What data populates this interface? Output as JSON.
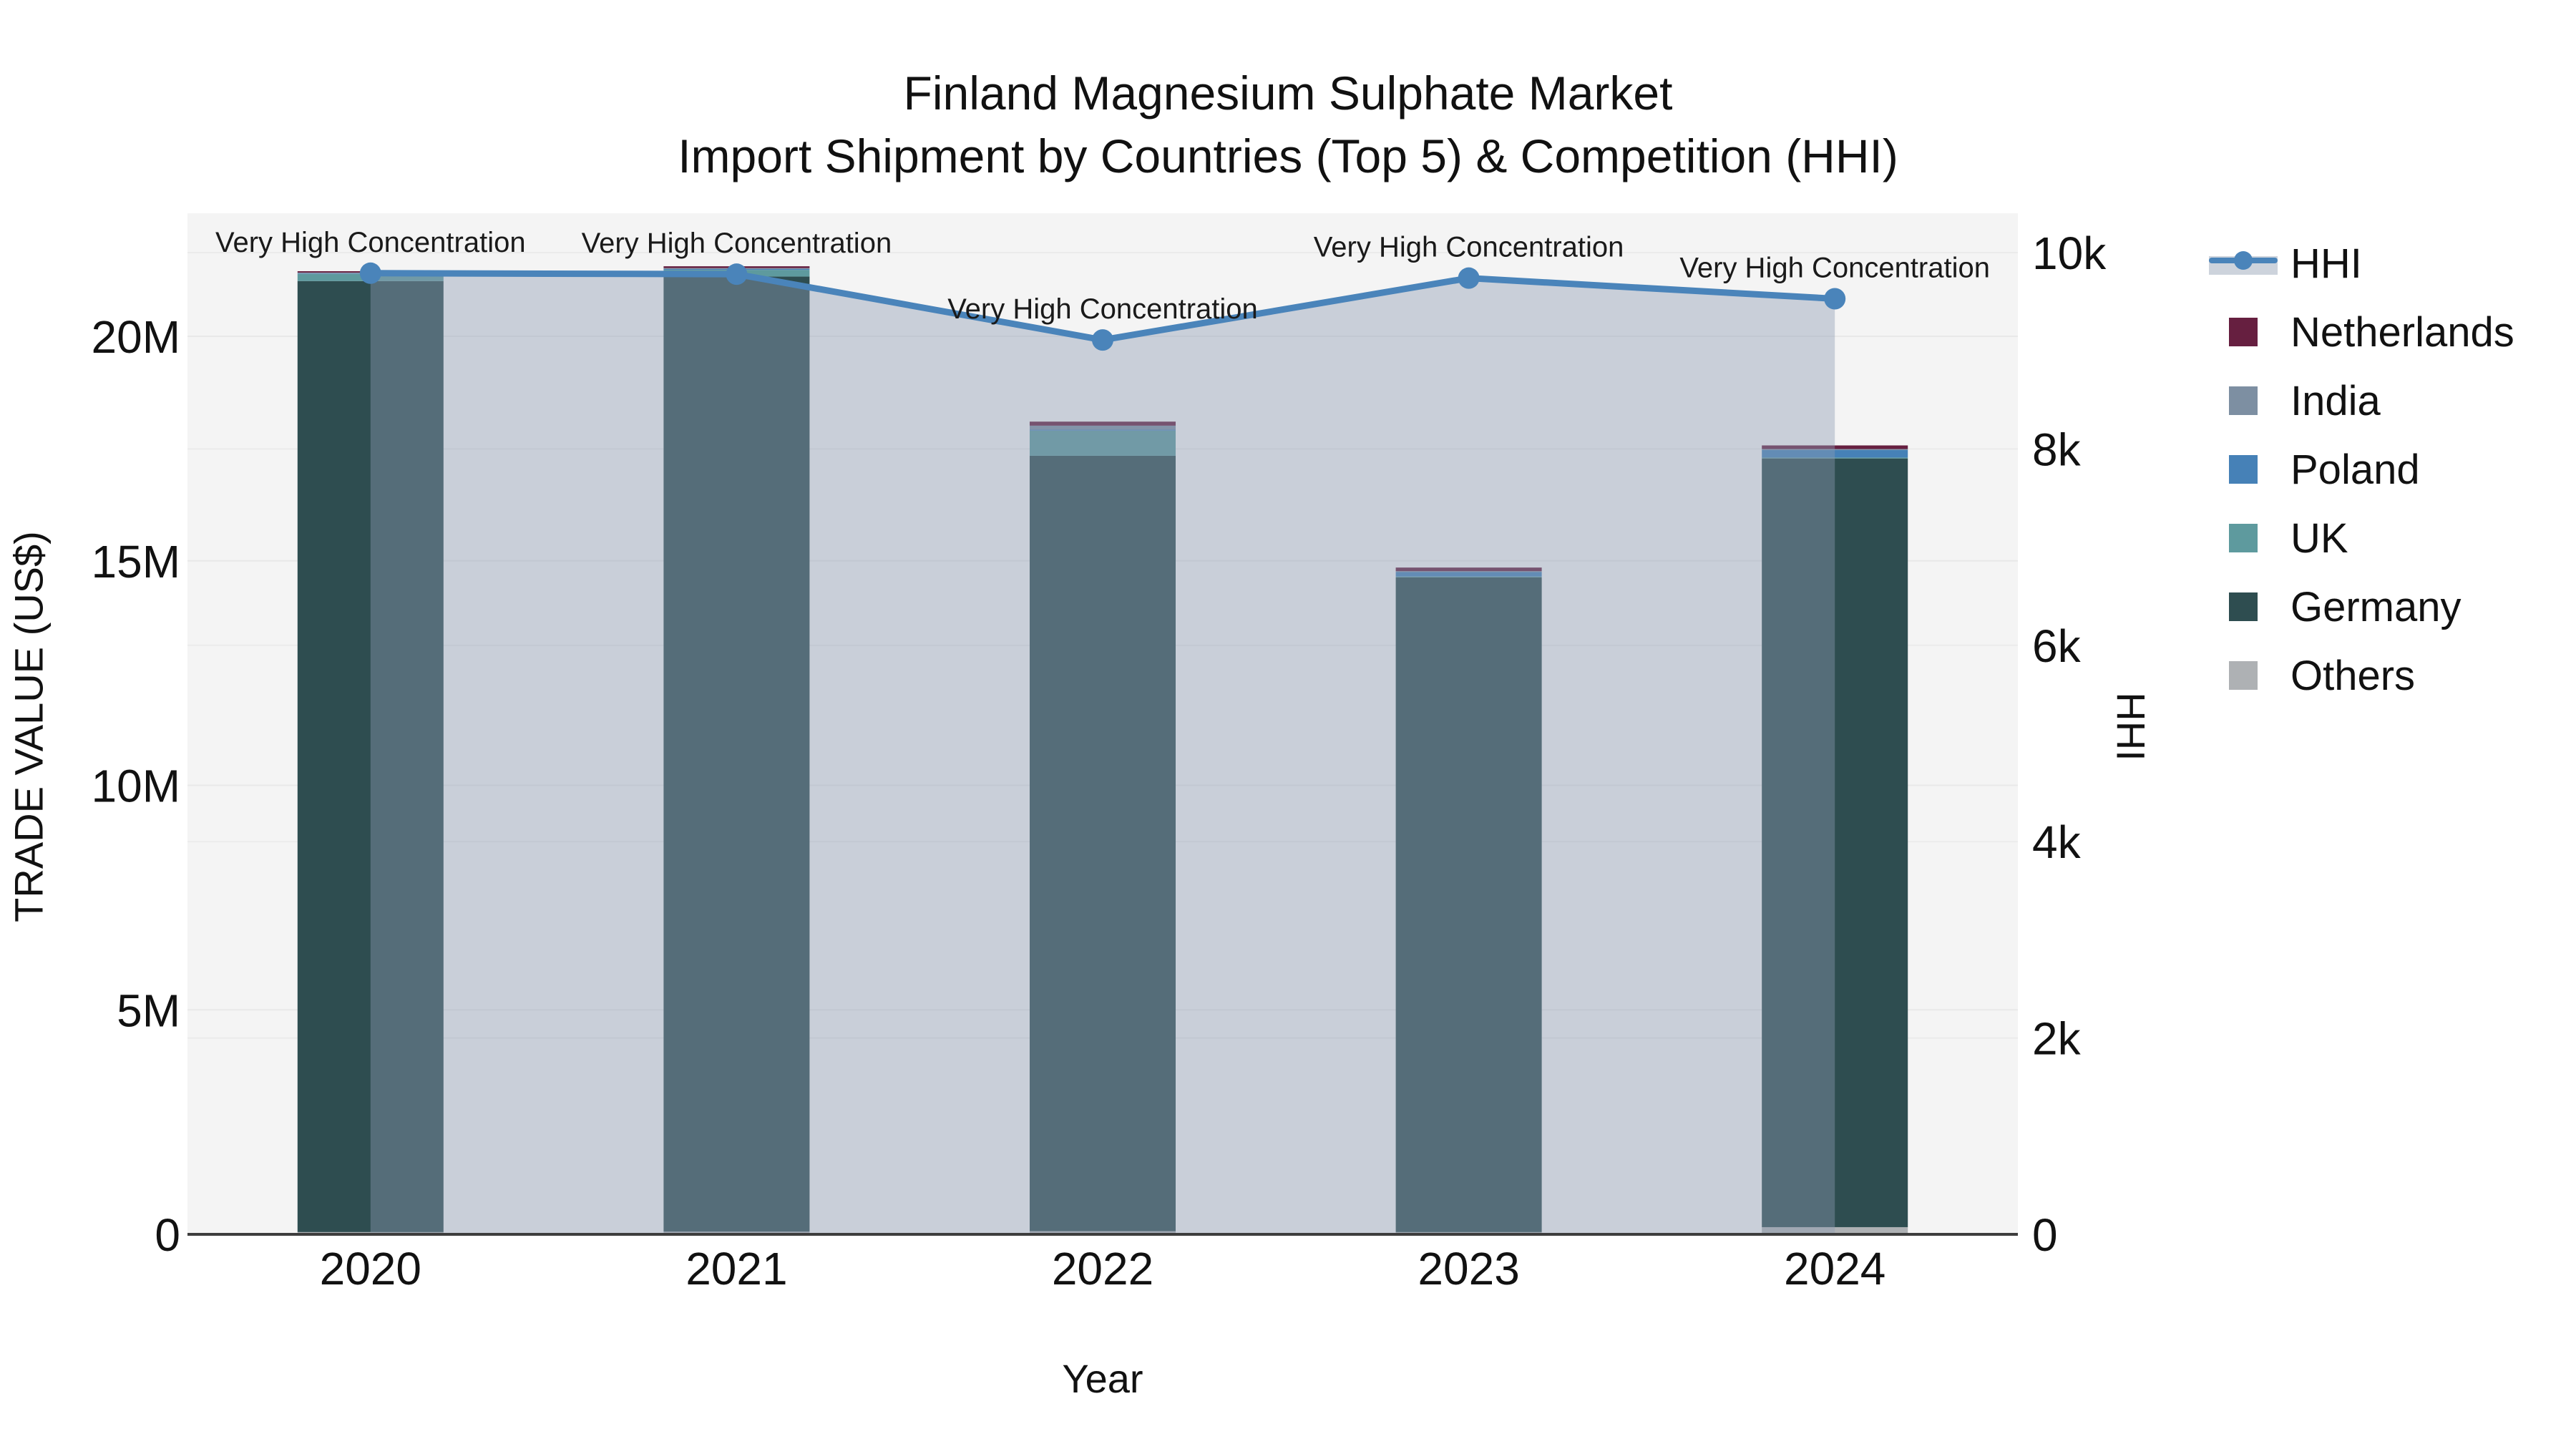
{
  "title": {
    "line1": "Finland Magnesium Sulphate Market",
    "line2": "Import Shipment by Countries (Top 5) & Competition (HHI)"
  },
  "axes": {
    "left": {
      "title": "TRADE VALUE (US$)",
      "ticks": [
        "0",
        "5M",
        "10M",
        "15M",
        "20M"
      ],
      "tick_values_millions": [
        0,
        5,
        10,
        15,
        20
      ]
    },
    "right": {
      "title": "HHI",
      "ticks": [
        "0",
        "2k",
        "4k",
        "6k",
        "8k",
        "10k"
      ],
      "tick_values": [
        0,
        2000,
        4000,
        6000,
        8000,
        10000
      ]
    },
    "x": {
      "title": "Year",
      "categories": [
        "2020",
        "2021",
        "2022",
        "2023",
        "2024"
      ]
    }
  },
  "legend": {
    "items": [
      "HHI",
      "Netherlands",
      "India",
      "Poland",
      "UK",
      "Germany",
      "Others"
    ]
  },
  "chart_data": {
    "type": "bar+line",
    "subtype": "stacked bars (left axis, million US$) with HHI line+area on right axis",
    "categories": [
      "2020",
      "2021",
      "2022",
      "2023",
      "2024"
    ],
    "bar_unit": "million US$",
    "stack_order_bottom_to_top": [
      "Others",
      "Germany",
      "UK",
      "Poland",
      "India",
      "Netherlands"
    ],
    "series": [
      {
        "name": "Netherlands",
        "color": "#661f40",
        "values_millions": [
          0.03,
          0.04,
          0.09,
          0.08,
          0.08
        ]
      },
      {
        "name": "India",
        "color": "#7d8fa2",
        "values_millions": [
          0.02,
          0.02,
          0.09,
          0.02,
          0.02
        ]
      },
      {
        "name": "Poland",
        "color": "#4681b7",
        "values_millions": [
          0.01,
          0.02,
          0.02,
          0.1,
          0.17
        ]
      },
      {
        "name": "UK",
        "color": "#5e9a9e",
        "values_millions": [
          0.16,
          0.15,
          0.56,
          0.02,
          0.02
        ]
      },
      {
        "name": "Germany",
        "color": "#2e4d50",
        "values_millions": [
          21.18,
          21.27,
          17.27,
          14.58,
          17.12
        ]
      },
      {
        "name": "Others",
        "color": "#aeb1b4",
        "values_millions": [
          0.05,
          0.06,
          0.07,
          0.05,
          0.16
        ]
      }
    ],
    "bar_totals_millions": [
      21.45,
      21.56,
      18.1,
      14.85,
      17.57
    ],
    "hhi": {
      "name": "HHI",
      "line_color": "#4a84ba",
      "area_fill": "rgba(140,156,178,0.42)",
      "values": [
        9790,
        9780,
        9110,
        9740,
        9530
      ]
    },
    "annotations": [
      {
        "x": "2020",
        "label": "Very High Concentration"
      },
      {
        "x": "2021",
        "label": "Very High Concentration"
      },
      {
        "x": "2022",
        "label": "Very High Concentration"
      },
      {
        "x": "2023",
        "label": "Very High Concentration"
      },
      {
        "x": "2024",
        "label": "Very High Concentration"
      }
    ],
    "ylim_left_millions": [
      0,
      22.7
    ],
    "ylim_right": [
      0,
      10400
    ],
    "grid": true,
    "legend_position": "right",
    "plot_background": "#f4f4f4"
  }
}
